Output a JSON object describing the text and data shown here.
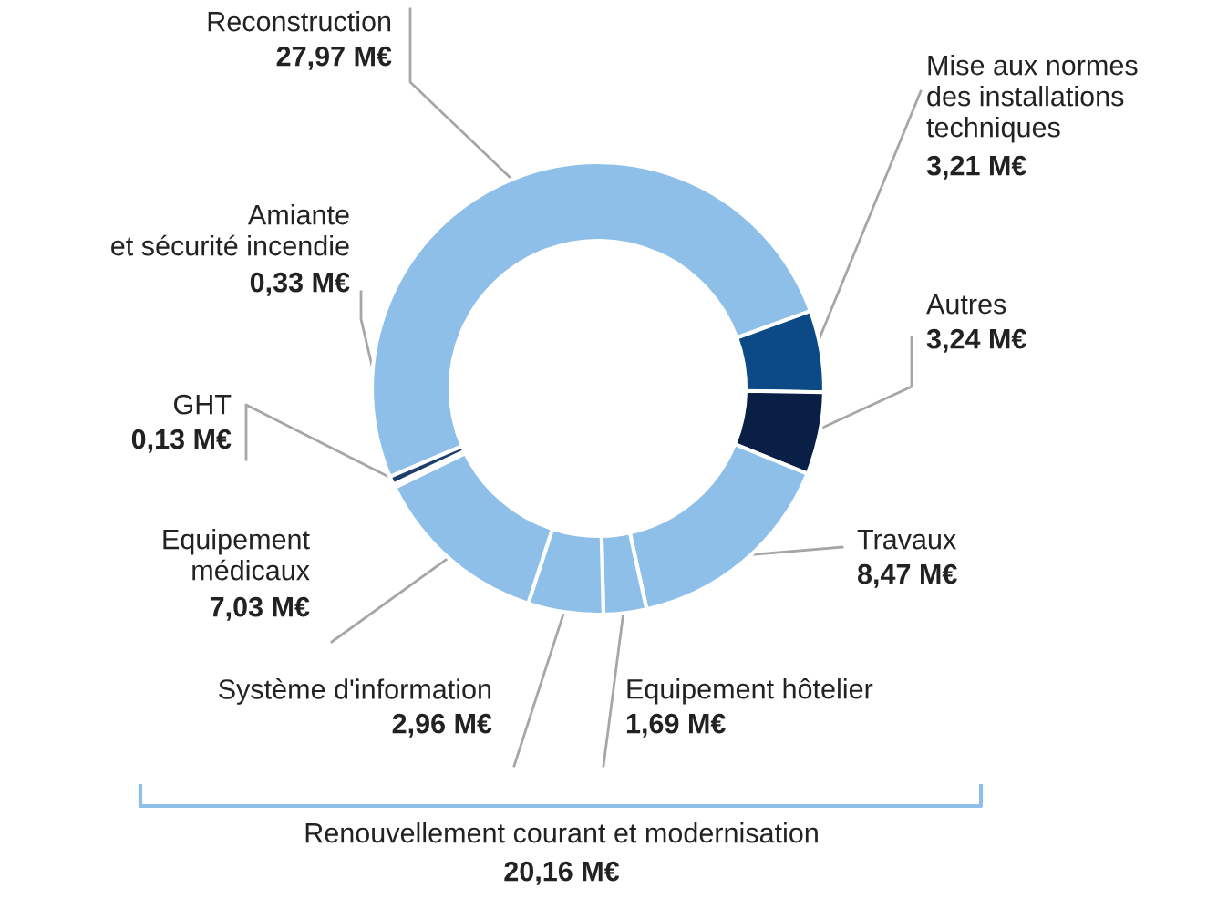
{
  "chart_data": {
    "type": "donut",
    "categories": [
      "Reconstruction",
      "Mise aux normes\ndes installations\ntechniques",
      "Autres",
      "Travaux",
      "Equipement hôtelier",
      "Système d'information",
      "Equipement\nmédicaux",
      "GHT",
      "Amiante\net sécurité incendie"
    ],
    "values": [
      27.97,
      3.21,
      3.24,
      8.47,
      1.69,
      2.96,
      7.03,
      0.13,
      0.33
    ],
    "value_labels": [
      "27,97 M€",
      "3,21 M€",
      "3,24 M€",
      "8,47 M€",
      "1,69 M€",
      "2,96 M€",
      "7,03 M€",
      "0,13 M€",
      "0,33 M€"
    ],
    "colors": [
      "#8dbfe8",
      "#0b4a86",
      "#0a1f45",
      "#8dbfe8",
      "#8dbfe8",
      "#8dbfe8",
      "#8dbfe8",
      "#1d3d6b",
      "#1d3d6b"
    ],
    "annotations": [
      "Renouvellement courant et modernisation",
      "20,16 M€"
    ],
    "legend": false
  }
}
